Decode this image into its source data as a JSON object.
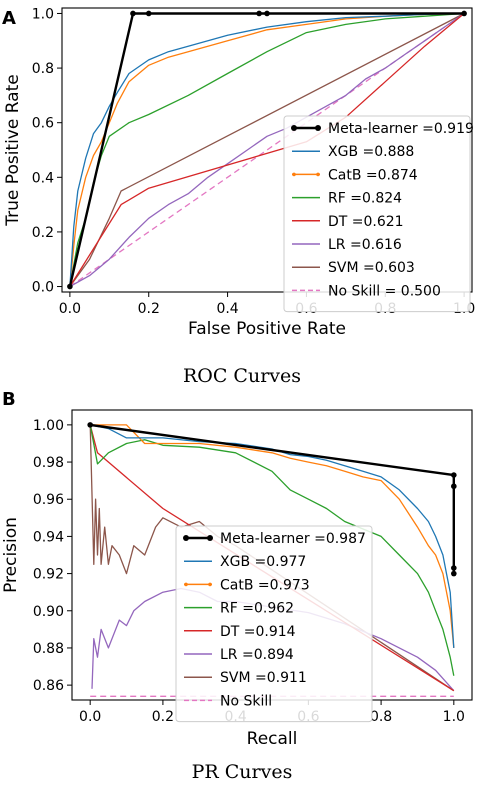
{
  "chart_data": [
    {
      "type": "line",
      "panel_label": "A",
      "caption": "ROC Curves",
      "xlabel": "False Positive Rate",
      "ylabel": "True Positive Rate",
      "xlim": [
        -0.02,
        1.02
      ],
      "ylim": [
        -0.02,
        1.02
      ],
      "xticks": [
        "0.0",
        "0.2",
        "0.4",
        "0.6",
        "0.8",
        "1.0"
      ],
      "yticks": [
        "0.0",
        "0.2",
        "0.4",
        "0.6",
        "0.8",
        "1.0"
      ],
      "grid": false,
      "legend_position": "lower-right",
      "series": [
        {
          "name": "Meta-learner =0.919",
          "color": "#000000",
          "marker": "dot",
          "x": [
            0,
            0.16,
            0.2,
            0.48,
            0.5,
            1.0
          ],
          "y": [
            0,
            1.0,
            1.0,
            1.0,
            1.0,
            1.0
          ]
        },
        {
          "name": "XGB =0.888",
          "color": "#1f77b4",
          "x": [
            0,
            0.01,
            0.02,
            0.04,
            0.06,
            0.08,
            0.1,
            0.12,
            0.15,
            0.2,
            0.25,
            0.3,
            0.4,
            0.5,
            0.6,
            0.7,
            0.8,
            0.9,
            1.0
          ],
          "y": [
            0,
            0.22,
            0.35,
            0.47,
            0.56,
            0.6,
            0.66,
            0.71,
            0.78,
            0.83,
            0.86,
            0.88,
            0.92,
            0.95,
            0.97,
            0.985,
            0.99,
            0.997,
            1.0
          ]
        },
        {
          "name": "CatB =0.874",
          "color": "#ff7f0e",
          "marker": "dot",
          "x": [
            0,
            0.01,
            0.02,
            0.04,
            0.06,
            0.08,
            0.1,
            0.12,
            0.15,
            0.2,
            0.25,
            0.3,
            0.4,
            0.5,
            0.6,
            0.7,
            0.8,
            0.9,
            1.0
          ],
          "y": [
            0,
            0.15,
            0.28,
            0.4,
            0.48,
            0.53,
            0.6,
            0.67,
            0.75,
            0.81,
            0.84,
            0.86,
            0.9,
            0.94,
            0.96,
            0.98,
            0.99,
            0.997,
            1.0
          ]
        },
        {
          "name": "RF =0.824",
          "color": "#2ca02c",
          "x": [
            0,
            0.01,
            0.02,
            0.04,
            0.06,
            0.08,
            0.1,
            0.15,
            0.2,
            0.3,
            0.4,
            0.5,
            0.6,
            0.7,
            0.8,
            0.9,
            1.0
          ],
          "y": [
            0,
            0.08,
            0.16,
            0.25,
            0.38,
            0.48,
            0.55,
            0.6,
            0.63,
            0.7,
            0.78,
            0.86,
            0.93,
            0.96,
            0.98,
            0.99,
            1.0
          ]
        },
        {
          "name": "DT =0.621",
          "color": "#d62728",
          "x": [
            0,
            0.13,
            0.2,
            0.6,
            0.7,
            0.8,
            0.9,
            1.0
          ],
          "y": [
            0,
            0.3,
            0.36,
            0.53,
            0.62,
            0.75,
            0.88,
            1.0
          ]
        },
        {
          "name": "LR =0.616",
          "color": "#9467bd",
          "x": [
            0,
            0.05,
            0.1,
            0.15,
            0.2,
            0.25,
            0.3,
            0.35,
            0.4,
            0.45,
            0.5,
            0.55,
            0.6,
            0.65,
            0.7,
            0.75,
            0.8,
            0.85,
            0.9,
            0.95,
            1.0
          ],
          "y": [
            0,
            0.04,
            0.1,
            0.18,
            0.25,
            0.3,
            0.34,
            0.4,
            0.45,
            0.5,
            0.55,
            0.58,
            0.62,
            0.66,
            0.7,
            0.76,
            0.8,
            0.85,
            0.9,
            0.95,
            1.0
          ]
        },
        {
          "name": "SVM =0.603",
          "color": "#8c564b",
          "x": [
            0,
            0.05,
            0.1,
            0.13,
            1.0
          ],
          "y": [
            0,
            0.1,
            0.25,
            0.35,
            1.0
          ]
        },
        {
          "name": "No Skill = 0.500",
          "color": "#e377c2",
          "dash": true,
          "x": [
            0,
            1
          ],
          "y": [
            0,
            1
          ]
        }
      ]
    },
    {
      "type": "line",
      "panel_label": "B",
      "caption": "PR Curves",
      "xlabel": "Recall",
      "ylabel": "Precision",
      "xlim": [
        -0.05,
        1.05
      ],
      "ylim": [
        0.852,
        1.008
      ],
      "xticks": [
        "0.0",
        "0.2",
        "0.4",
        "0.6",
        "0.8",
        "1.0"
      ],
      "yticks": [
        "0.86",
        "0.88",
        "0.90",
        "0.92",
        "0.94",
        "0.96",
        "0.98",
        "1.00"
      ],
      "grid": false,
      "legend_position": "center",
      "series": [
        {
          "name": "Meta-learner =0.987",
          "color": "#000000",
          "marker": "dot",
          "x": [
            0,
            1.0,
            1.0,
            1.0,
            1.0
          ],
          "y": [
            1.0,
            0.973,
            0.967,
            0.923,
            0.92
          ]
        },
        {
          "name": "XGB =0.977",
          "color": "#1f77b4",
          "x": [
            0,
            0.05,
            0.1,
            0.2,
            0.3,
            0.4,
            0.5,
            0.55,
            0.6,
            0.65,
            0.7,
            0.75,
            0.8,
            0.85,
            0.9,
            0.93,
            0.95,
            0.97,
            0.98,
            0.99,
            1.0
          ],
          "y": [
            1.0,
            0.998,
            0.993,
            0.993,
            0.991,
            0.99,
            0.987,
            0.984,
            0.983,
            0.981,
            0.978,
            0.975,
            0.972,
            0.965,
            0.955,
            0.948,
            0.94,
            0.93,
            0.92,
            0.91,
            0.88
          ]
        },
        {
          "name": "CatB =0.973",
          "color": "#ff7f0e",
          "marker": "dot",
          "x": [
            0,
            0.02,
            0.04,
            0.06,
            0.08,
            0.1,
            0.15,
            0.2,
            0.3,
            0.4,
            0.5,
            0.55,
            0.6,
            0.65,
            0.7,
            0.75,
            0.8,
            0.85,
            0.9,
            0.93,
            0.95,
            0.97,
            0.99,
            1.0
          ],
          "y": [
            1.0,
            1.0,
            1.0,
            1.0,
            1.0,
            1.0,
            0.99,
            0.99,
            0.99,
            0.988,
            0.985,
            0.982,
            0.98,
            0.978,
            0.975,
            0.972,
            0.97,
            0.96,
            0.945,
            0.935,
            0.93,
            0.92,
            0.9,
            0.88
          ]
        },
        {
          "name": "RF =0.962",
          "color": "#2ca02c",
          "x": [
            0,
            0.02,
            0.05,
            0.1,
            0.15,
            0.2,
            0.3,
            0.4,
            0.5,
            0.55,
            0.6,
            0.65,
            0.7,
            0.8,
            0.85,
            0.9,
            0.93,
            0.95,
            0.97,
            0.99,
            1.0
          ],
          "y": [
            1.0,
            0.979,
            0.985,
            0.99,
            0.992,
            0.989,
            0.988,
            0.985,
            0.975,
            0.965,
            0.96,
            0.955,
            0.948,
            0.94,
            0.93,
            0.92,
            0.91,
            0.9,
            0.89,
            0.875,
            0.865
          ]
        },
        {
          "name": "DT =0.914",
          "color": "#d62728",
          "x": [
            0,
            0.02,
            0.2,
            1.0
          ],
          "y": [
            1.0,
            0.985,
            0.955,
            0.857
          ]
        },
        {
          "name": "LR =0.894",
          "color": "#9467bd",
          "x": [
            0.005,
            0.01,
            0.02,
            0.03,
            0.05,
            0.08,
            0.1,
            0.12,
            0.15,
            0.2,
            0.25,
            0.3,
            0.35,
            0.4,
            0.5,
            0.6,
            0.7,
            0.8,
            0.9,
            0.95,
            1.0
          ],
          "y": [
            0.858,
            0.885,
            0.875,
            0.89,
            0.88,
            0.895,
            0.892,
            0.9,
            0.905,
            0.91,
            0.912,
            0.91,
            0.905,
            0.905,
            0.902,
            0.899,
            0.893,
            0.885,
            0.875,
            0.868,
            0.857
          ]
        },
        {
          "name": "SVM =0.911",
          "color": "#8c564b",
          "x": [
            0,
            0.01,
            0.015,
            0.02,
            0.025,
            0.03,
            0.04,
            0.05,
            0.06,
            0.08,
            0.1,
            0.12,
            0.15,
            0.18,
            0.2,
            0.25,
            0.3,
            0.35,
            0.4,
            1.0
          ],
          "y": [
            1.0,
            0.925,
            0.96,
            0.93,
            0.955,
            0.925,
            0.945,
            0.925,
            0.935,
            0.93,
            0.92,
            0.935,
            0.93,
            0.945,
            0.95,
            0.945,
            0.948,
            0.94,
            0.935,
            0.857
          ]
        },
        {
          "name": "No Skill",
          "color": "#e377c2",
          "dash": true,
          "x": [
            0,
            1
          ],
          "y": [
            0.854,
            0.854
          ]
        }
      ]
    }
  ]
}
